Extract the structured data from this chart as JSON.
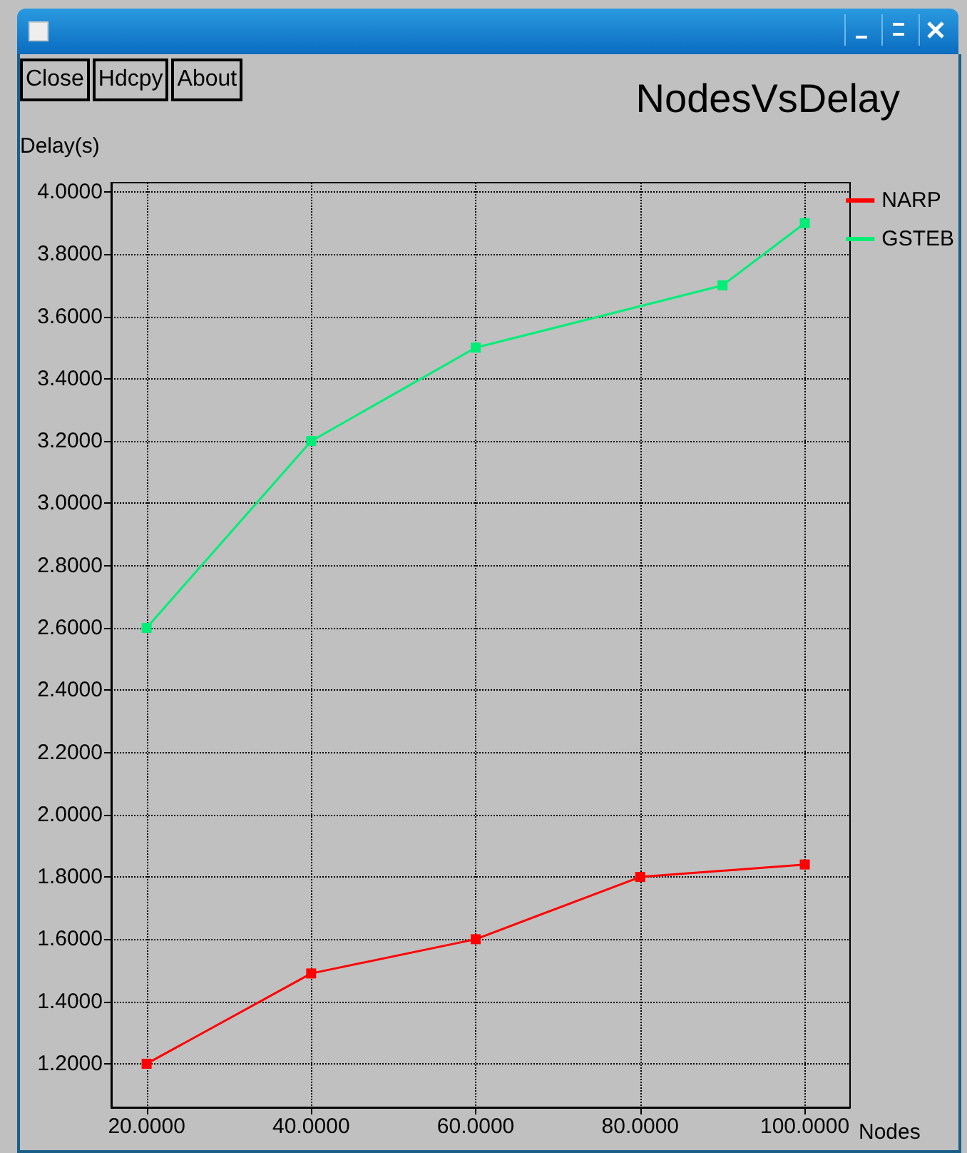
{
  "chart_data": {
    "type": "line",
    "title": "NodesVsDelay",
    "xlabel": "Nodes",
    "ylabel": "Delay(s)",
    "annotations": [
      "Close",
      "Hdcpy",
      "About"
    ],
    "x": [
      20,
      40,
      60,
      80,
      100
    ],
    "series": [
      {
        "name": "NARP",
        "color": "#ff0000",
        "values": [
          1.2,
          1.49,
          1.6,
          1.8,
          1.84
        ]
      },
      {
        "name": "GSTEB",
        "color": "#00ee77",
        "x": [
          20,
          40,
          60,
          90,
          100
        ],
        "values": [
          2.6,
          3.2,
          3.5,
          3.7,
          3.9
        ]
      }
    ],
    "xlim": [
      15.7,
      105.5
    ],
    "xticks": [
      {
        "value": 20,
        "label": "20.0000"
      },
      {
        "value": 40,
        "label": "40.0000"
      },
      {
        "value": 60,
        "label": "60.0000"
      },
      {
        "value": 80,
        "label": "80.0000"
      },
      {
        "value": 100,
        "label": "100.0000"
      }
    ],
    "ylim": [
      1.06,
      4.03
    ],
    "yticks": [
      {
        "value": 1.2,
        "label": "1.2000"
      },
      {
        "value": 1.4,
        "label": "1.4000"
      },
      {
        "value": 1.6,
        "label": "1.6000"
      },
      {
        "value": 1.8,
        "label": "1.8000"
      },
      {
        "value": 2.0,
        "label": "2.0000"
      },
      {
        "value": 2.2,
        "label": "2.2000"
      },
      {
        "value": 2.4,
        "label": "2.4000"
      },
      {
        "value": 2.6,
        "label": "2.6000"
      },
      {
        "value": 2.8,
        "label": "2.8000"
      },
      {
        "value": 3.0,
        "label": "3.0000"
      },
      {
        "value": 3.2,
        "label": "3.2000"
      },
      {
        "value": 3.4,
        "label": "3.4000"
      },
      {
        "value": 3.6,
        "label": "3.6000"
      },
      {
        "value": 3.8,
        "label": "3.8000"
      },
      {
        "value": 4.0,
        "label": "4.0000"
      }
    ],
    "grid": true,
    "legend": "top right",
    "marker": "square",
    "line_style": "solid"
  }
}
